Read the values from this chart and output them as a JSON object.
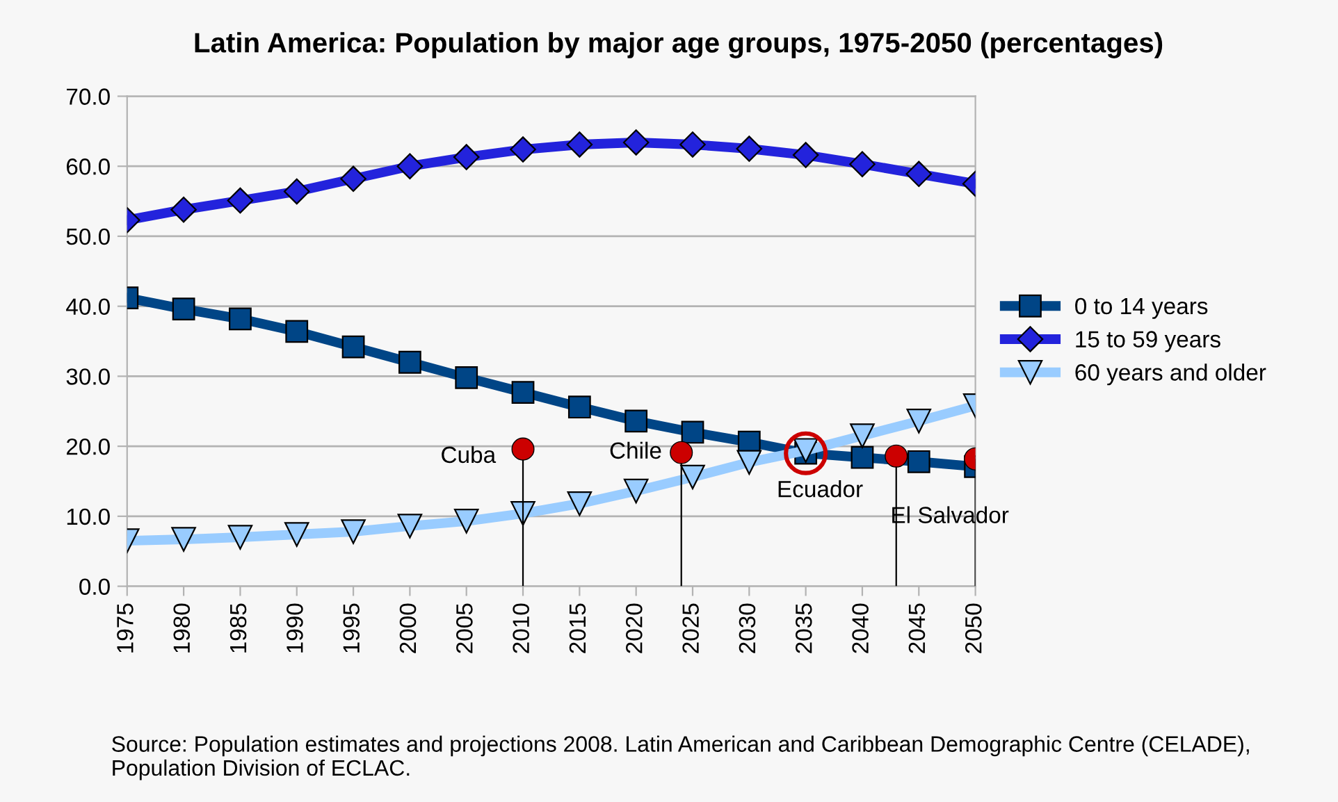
{
  "chart_data": {
    "type": "line",
    "title": "Latin America: Population by major age groups, 1975-2050 (percentages)",
    "x": [
      1975,
      1980,
      1985,
      1990,
      1995,
      2000,
      2005,
      2010,
      2015,
      2020,
      2025,
      2030,
      2035,
      2040,
      2045,
      2050
    ],
    "series": [
      {
        "name": "0 to 14 years",
        "color": "#004586",
        "marker": "square",
        "values": [
          41.2,
          39.6,
          38.2,
          36.4,
          34.2,
          32.0,
          29.8,
          27.7,
          25.6,
          23.6,
          22.0,
          20.6,
          19.0,
          18.4,
          17.8,
          17.1
        ]
      },
      {
        "name": "15 to 59 years",
        "color": "#2323dc",
        "marker": "diamond",
        "values": [
          52.3,
          53.8,
          55.1,
          56.4,
          58.2,
          60.0,
          61.3,
          62.4,
          63.1,
          63.4,
          63.1,
          62.5,
          61.6,
          60.3,
          58.9,
          57.5
        ]
      },
      {
        "name": "60 years and older",
        "color": "#99ccff",
        "marker": "triangle",
        "values": [
          6.5,
          6.7,
          7.0,
          7.4,
          7.8,
          8.6,
          9.3,
          10.4,
          11.8,
          13.6,
          15.6,
          17.7,
          19.4,
          21.5,
          23.6,
          25.8
        ]
      },
      {
        "type": "lollipop",
        "color": "#cc0000",
        "x": [
          2010,
          2024,
          2043,
          2050
        ],
        "values": [
          19.6,
          19.1,
          18.6,
          18.2
        ]
      }
    ],
    "xlim": [
      1975,
      2050
    ],
    "xticks": [
      1975,
      1980,
      1985,
      1990,
      1995,
      2000,
      2005,
      2010,
      2015,
      2020,
      2025,
      2030,
      2035,
      2040,
      2045,
      2050
    ],
    "ylim": [
      0,
      70
    ],
    "yticks": [
      {
        "value": 0,
        "label": "0.0"
      },
      {
        "value": 10,
        "label": "10.0"
      },
      {
        "value": 20,
        "label": "20.0"
      },
      {
        "value": 30,
        "label": "30.0"
      },
      {
        "value": 40,
        "label": "40.0"
      },
      {
        "value": 50,
        "label": "50.0"
      },
      {
        "value": 60,
        "label": "60.0"
      },
      {
        "value": 70,
        "label": "70.0"
      }
    ],
    "grid": "y",
    "legend": "right",
    "annotations": [
      {
        "text": "Cuba",
        "x": 2010,
        "y": 19.6
      },
      {
        "text": "Chile",
        "x": 2024,
        "y": 19.1
      },
      {
        "text": "Ecuador",
        "x": 2035,
        "y": 19.0
      },
      {
        "text": "El Salvador",
        "x": 2043,
        "y": 18.6
      },
      "Source: Population estimates and projections 2008. Latin American and Caribbean Demographic Centre (CELADE), Population Division of ECLAC."
    ]
  }
}
